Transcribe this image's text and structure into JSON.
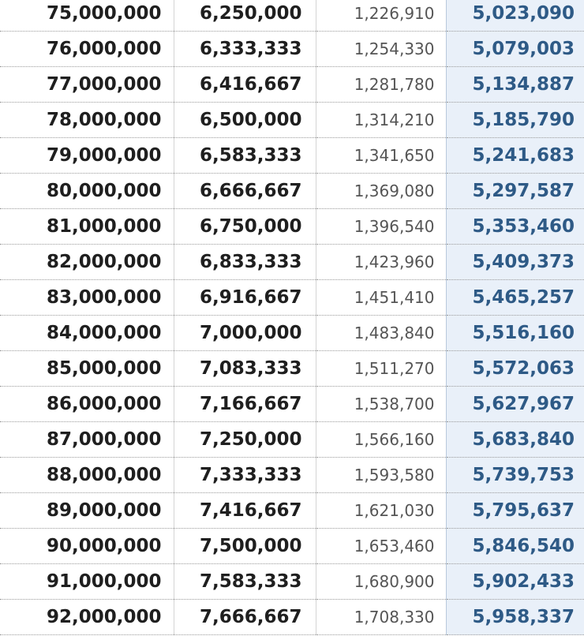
{
  "table": {
    "rows": [
      [
        "75,000,000",
        "6,250,000",
        "1,226,910",
        "5,023,090"
      ],
      [
        "76,000,000",
        "6,333,333",
        "1,254,330",
        "5,079,003"
      ],
      [
        "77,000,000",
        "6,416,667",
        "1,281,780",
        "5,134,887"
      ],
      [
        "78,000,000",
        "6,500,000",
        "1,314,210",
        "5,185,790"
      ],
      [
        "79,000,000",
        "6,583,333",
        "1,341,650",
        "5,241,683"
      ],
      [
        "80,000,000",
        "6,666,667",
        "1,369,080",
        "5,297,587"
      ],
      [
        "81,000,000",
        "6,750,000",
        "1,396,540",
        "5,353,460"
      ],
      [
        "82,000,000",
        "6,833,333",
        "1,423,960",
        "5,409,373"
      ],
      [
        "83,000,000",
        "6,916,667",
        "1,451,410",
        "5,465,257"
      ],
      [
        "84,000,000",
        "7,000,000",
        "1,483,840",
        "5,516,160"
      ],
      [
        "85,000,000",
        "7,083,333",
        "1,511,270",
        "5,572,063"
      ],
      [
        "86,000,000",
        "7,166,667",
        "1,538,700",
        "5,627,967"
      ],
      [
        "87,000,000",
        "7,250,000",
        "1,566,160",
        "5,683,840"
      ],
      [
        "88,000,000",
        "7,333,333",
        "1,593,580",
        "5,739,753"
      ],
      [
        "89,000,000",
        "7,416,667",
        "1,621,030",
        "5,795,637"
      ],
      [
        "90,000,000",
        "7,500,000",
        "1,653,460",
        "5,846,540"
      ],
      [
        "91,000,000",
        "7,583,333",
        "1,680,900",
        "5,902,433"
      ],
      [
        "92,000,000",
        "7,666,667",
        "1,708,330",
        "5,958,337"
      ]
    ]
  }
}
